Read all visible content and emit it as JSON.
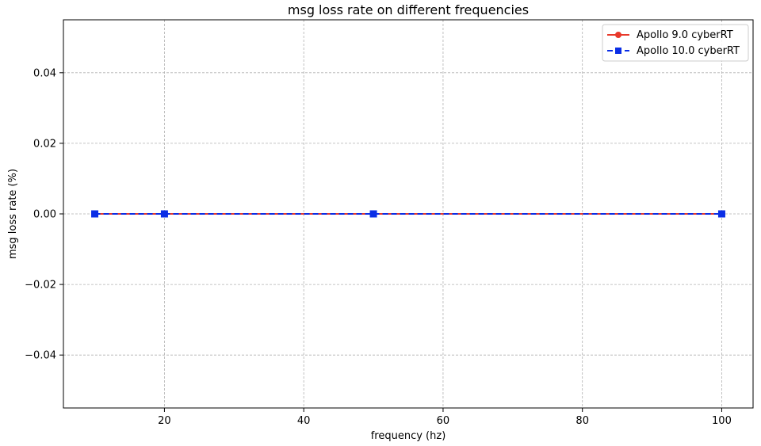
{
  "chart_data": {
    "type": "line",
    "title": "msg loss rate on different frequencies",
    "xlabel": "frequency (hz)",
    "ylabel": "msg loss rate (%)",
    "xlim": [
      5.5,
      104.5
    ],
    "ylim": [
      -0.055,
      0.055
    ],
    "xticks": [
      20,
      40,
      60,
      80,
      100
    ],
    "yticks": [
      -0.04,
      -0.02,
      0.0,
      0.02,
      0.04
    ],
    "xtick_labels": [
      "20",
      "40",
      "60",
      "80",
      "100"
    ],
    "ytick_labels": [
      "−0.04",
      "−0.02",
      "0.00",
      "0.02",
      "0.04"
    ],
    "grid": true,
    "legend_position": "top-right",
    "x": [
      10,
      20,
      50,
      100
    ],
    "series": [
      {
        "name": "Apollo 9.0 cyberRT",
        "values": [
          0,
          0,
          0,
          0
        ],
        "color": "#e8392b",
        "marker": "circle",
        "linestyle": "solid"
      },
      {
        "name": "Apollo 10.0 cyberRT",
        "values": [
          0,
          0,
          0,
          0
        ],
        "color": "#0a2ee6",
        "marker": "square",
        "linestyle": "dashed"
      }
    ]
  }
}
